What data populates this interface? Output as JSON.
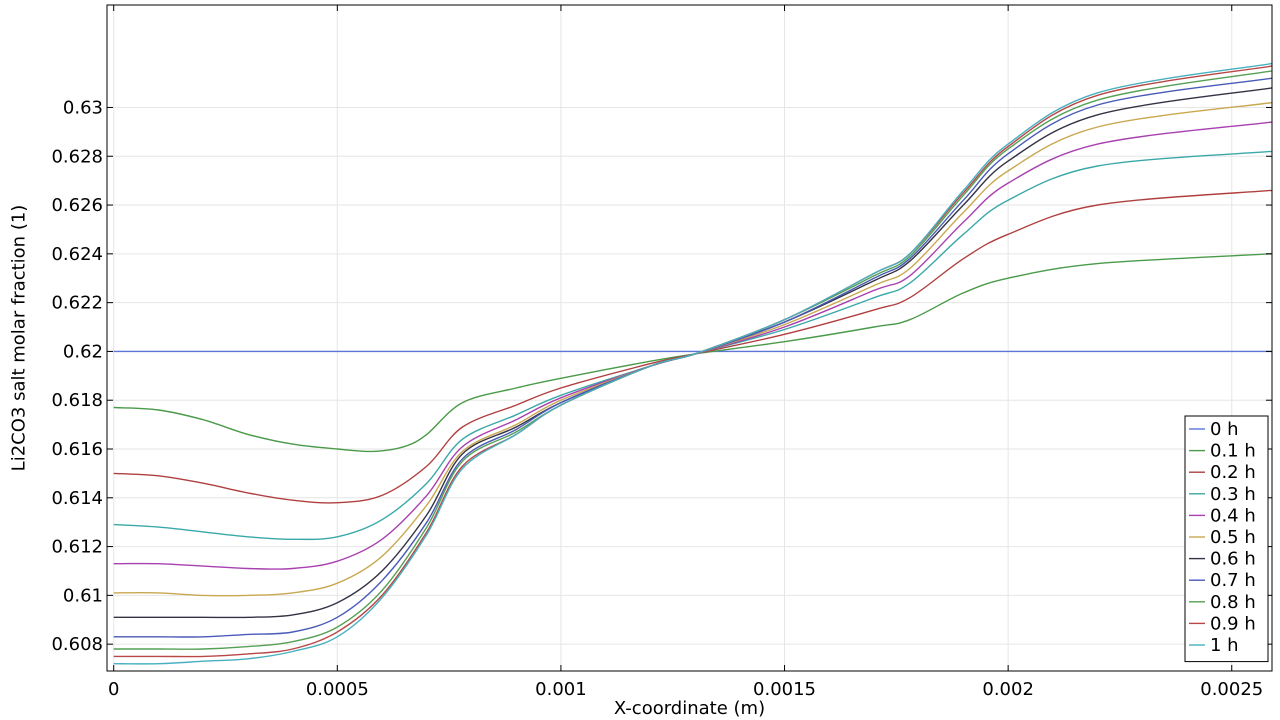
{
  "chart_data": {
    "type": "line",
    "title": "",
    "xlabel": "X-coordinate (m)",
    "ylabel": "Li2CO3 salt molar fraction (1)",
    "xlim": [
      -1.5e-05,
      0.00259
    ],
    "ylim": [
      0.6069,
      0.6342
    ],
    "xticks": [
      0,
      0.0005,
      0.001,
      0.0015,
      0.002,
      0.0025
    ],
    "xtick_labels": [
      "0",
      "0.0005",
      "0.001",
      "0.0015",
      "0.002",
      "0.0025"
    ],
    "yticks": [
      0.608,
      0.61,
      0.612,
      0.614,
      0.616,
      0.618,
      0.62,
      0.622,
      0.624,
      0.626,
      0.628,
      0.63
    ],
    "ytick_labels": [
      "0.608",
      "0.61",
      "0.612",
      "0.614",
      "0.616",
      "0.618",
      "0.62",
      "0.622",
      "0.624",
      "0.626",
      "0.628",
      "0.63"
    ],
    "grid": true,
    "legend_position": "bottom-right",
    "series": [
      {
        "name": "0 h",
        "color": "#5b75d8",
        "x": [
          0,
          0.0013,
          0.00259
        ],
        "y": [
          0.62,
          0.62,
          0.62
        ]
      },
      {
        "name": "0.1 h",
        "color": "#4a9a4a",
        "x": [
          0,
          0.0001,
          0.0002,
          0.0003,
          0.0004,
          0.0005,
          0.00058,
          0.00065,
          0.0007,
          0.00078,
          0.0009,
          0.001,
          0.0012,
          0.0013,
          0.0015,
          0.0017,
          0.00178,
          0.0019,
          0.002,
          0.0022,
          0.00259
        ],
        "y": [
          0.6177,
          0.6176,
          0.6172,
          0.6166,
          0.6162,
          0.616,
          0.6159,
          0.6161,
          0.6166,
          0.6179,
          0.6185,
          0.6189,
          0.6196,
          0.6199,
          0.6204,
          0.621,
          0.6213,
          0.6224,
          0.623,
          0.6236,
          0.624
        ]
      },
      {
        "name": "0.2 h",
        "color": "#b04040",
        "x": [
          0,
          0.0001,
          0.0002,
          0.0003,
          0.0004,
          0.0005,
          0.0006,
          0.0007,
          0.00078,
          0.0009,
          0.001,
          0.0012,
          0.0013,
          0.0015,
          0.0017,
          0.00178,
          0.0019,
          0.002,
          0.0022,
          0.00259
        ],
        "y": [
          0.615,
          0.6149,
          0.6146,
          0.6142,
          0.6139,
          0.6138,
          0.6141,
          0.6153,
          0.6169,
          0.6178,
          0.6185,
          0.6195,
          0.6199,
          0.6207,
          0.6217,
          0.6222,
          0.6238,
          0.6248,
          0.626,
          0.6266
        ]
      },
      {
        "name": "0.3 h",
        "color": "#3aa8a8",
        "x": [
          0,
          0.0001,
          0.0002,
          0.0003,
          0.0004,
          0.0005,
          0.0006,
          0.0007,
          0.00078,
          0.0009,
          0.001,
          0.0012,
          0.0013,
          0.0015,
          0.0017,
          0.00178,
          0.0019,
          0.002,
          0.0022,
          0.00259
        ],
        "y": [
          0.6129,
          0.6128,
          0.6126,
          0.6124,
          0.6123,
          0.6124,
          0.6131,
          0.6146,
          0.6164,
          0.6174,
          0.6182,
          0.6194,
          0.6199,
          0.6209,
          0.6222,
          0.6228,
          0.6248,
          0.6262,
          0.6276,
          0.6282
        ]
      },
      {
        "name": "0.4 h",
        "color": "#a840b0",
        "x": [
          0,
          0.0001,
          0.0002,
          0.0003,
          0.0004,
          0.0005,
          0.0006,
          0.0007,
          0.00078,
          0.0009,
          0.001,
          0.0012,
          0.0013,
          0.0015,
          0.0017,
          0.00178,
          0.0019,
          0.002,
          0.0022,
          0.00259
        ],
        "y": [
          0.6113,
          0.6113,
          0.6112,
          0.6111,
          0.6111,
          0.6114,
          0.6123,
          0.6141,
          0.6161,
          0.6172,
          0.6181,
          0.6194,
          0.6199,
          0.621,
          0.6225,
          0.6231,
          0.6253,
          0.6269,
          0.6285,
          0.6294
        ]
      },
      {
        "name": "0.5 h",
        "color": "#c8a850",
        "x": [
          0,
          0.0001,
          0.0002,
          0.0003,
          0.0004,
          0.0005,
          0.0006,
          0.0007,
          0.00078,
          0.0009,
          0.001,
          0.0012,
          0.0013,
          0.0015,
          0.0017,
          0.00178,
          0.0019,
          0.002,
          0.0022,
          0.00259
        ],
        "y": [
          0.6101,
          0.6101,
          0.61,
          0.61,
          0.6101,
          0.6105,
          0.6116,
          0.6137,
          0.6159,
          0.617,
          0.618,
          0.6194,
          0.6199,
          0.6211,
          0.6227,
          0.6234,
          0.6257,
          0.6274,
          0.6292,
          0.6302
        ]
      },
      {
        "name": "0.6 h",
        "color": "#333344",
        "x": [
          0,
          0.0001,
          0.0002,
          0.0003,
          0.0004,
          0.0005,
          0.0006,
          0.0007,
          0.00078,
          0.0009,
          0.001,
          0.0012,
          0.0013,
          0.0015,
          0.0017,
          0.00178,
          0.0019,
          0.002,
          0.0022,
          0.00259
        ],
        "y": [
          0.6091,
          0.6091,
          0.6091,
          0.6091,
          0.6092,
          0.6097,
          0.611,
          0.6133,
          0.6158,
          0.6169,
          0.6179,
          0.6194,
          0.6199,
          0.6212,
          0.6229,
          0.6237,
          0.626,
          0.6278,
          0.6297,
          0.6308
        ]
      },
      {
        "name": "0.7 h",
        "color": "#4a5ab8",
        "x": [
          0,
          0.0001,
          0.0002,
          0.0003,
          0.0004,
          0.0005,
          0.0006,
          0.0007,
          0.00078,
          0.0009,
          0.001,
          0.0012,
          0.0013,
          0.0015,
          0.0017,
          0.00178,
          0.0019,
          0.002,
          0.0022,
          0.00259
        ],
        "y": [
          0.6083,
          0.6083,
          0.6083,
          0.6084,
          0.6085,
          0.6091,
          0.6106,
          0.613,
          0.6156,
          0.6168,
          0.6179,
          0.6194,
          0.6199,
          0.6212,
          0.623,
          0.6238,
          0.6262,
          0.6281,
          0.6301,
          0.6312
        ]
      },
      {
        "name": "0.8 h",
        "color": "#55a055",
        "x": [
          0,
          0.0001,
          0.0002,
          0.0003,
          0.0004,
          0.0005,
          0.0006,
          0.0007,
          0.00078,
          0.0009,
          0.001,
          0.0012,
          0.0013,
          0.0015,
          0.0017,
          0.00178,
          0.0019,
          0.002,
          0.0022,
          0.00259
        ],
        "y": [
          0.6078,
          0.6078,
          0.6078,
          0.6079,
          0.6081,
          0.6087,
          0.6102,
          0.6128,
          0.6155,
          0.6167,
          0.6178,
          0.6194,
          0.6199,
          0.6213,
          0.6231,
          0.6239,
          0.6264,
          0.6283,
          0.6303,
          0.6315
        ]
      },
      {
        "name": "0.9 h",
        "color": "#b84848",
        "x": [
          0,
          0.0001,
          0.0002,
          0.0003,
          0.0004,
          0.0005,
          0.0006,
          0.0007,
          0.00078,
          0.0009,
          0.001,
          0.0012,
          0.0013,
          0.0015,
          0.0017,
          0.00178,
          0.0019,
          0.002,
          0.0022,
          0.00259
        ],
        "y": [
          0.6075,
          0.6075,
          0.6075,
          0.6076,
          0.6078,
          0.6085,
          0.61,
          0.6126,
          0.6153,
          0.6166,
          0.6178,
          0.6194,
          0.6199,
          0.6213,
          0.6232,
          0.624,
          0.6265,
          0.6284,
          0.6305,
          0.6317
        ]
      },
      {
        "name": "1 h",
        "color": "#48b0c0",
        "x": [
          0,
          0.0001,
          0.0002,
          0.0003,
          0.0004,
          0.0005,
          0.0006,
          0.0007,
          0.00078,
          0.0009,
          0.001,
          0.0012,
          0.0013,
          0.0015,
          0.0017,
          0.00178,
          0.0019,
          0.002,
          0.0022,
          0.00259
        ],
        "y": [
          0.6072,
          0.6072,
          0.6073,
          0.6074,
          0.6077,
          0.6083,
          0.6099,
          0.6125,
          0.6152,
          0.6166,
          0.6178,
          0.6194,
          0.6199,
          0.6213,
          0.6232,
          0.624,
          0.6266,
          0.6285,
          0.6306,
          0.6318
        ]
      }
    ]
  }
}
